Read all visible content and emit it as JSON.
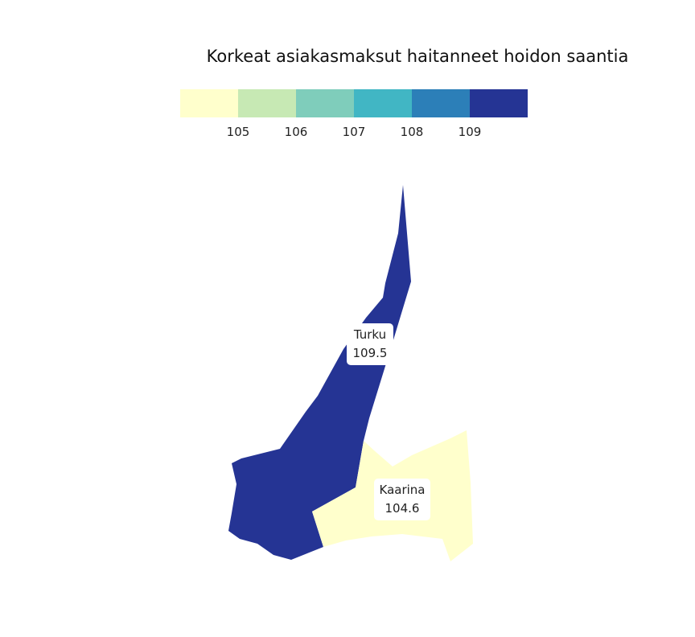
{
  "chart_data": {
    "type": "choropleth",
    "title": "Korkeat asiakasmaksut haitanneet hoidon saantia",
    "legend": {
      "placement": "top",
      "colors": [
        "#ffffcc",
        "#c7e9b4",
        "#7fcdbb",
        "#41b6c4",
        "#2c7fb8",
        "#253494"
      ],
      "tick_labels": [
        "105",
        "106",
        "107",
        "108",
        "109"
      ],
      "breaks": [
        105,
        106,
        107,
        108,
        109
      ]
    },
    "regions": [
      {
        "name": "Turku",
        "value": 109.5,
        "value_label": "109.5",
        "color": "#253494"
      },
      {
        "name": "Kaarina",
        "value": 104.6,
        "value_label": "104.6",
        "color": "#ffffcc"
      }
    ]
  }
}
